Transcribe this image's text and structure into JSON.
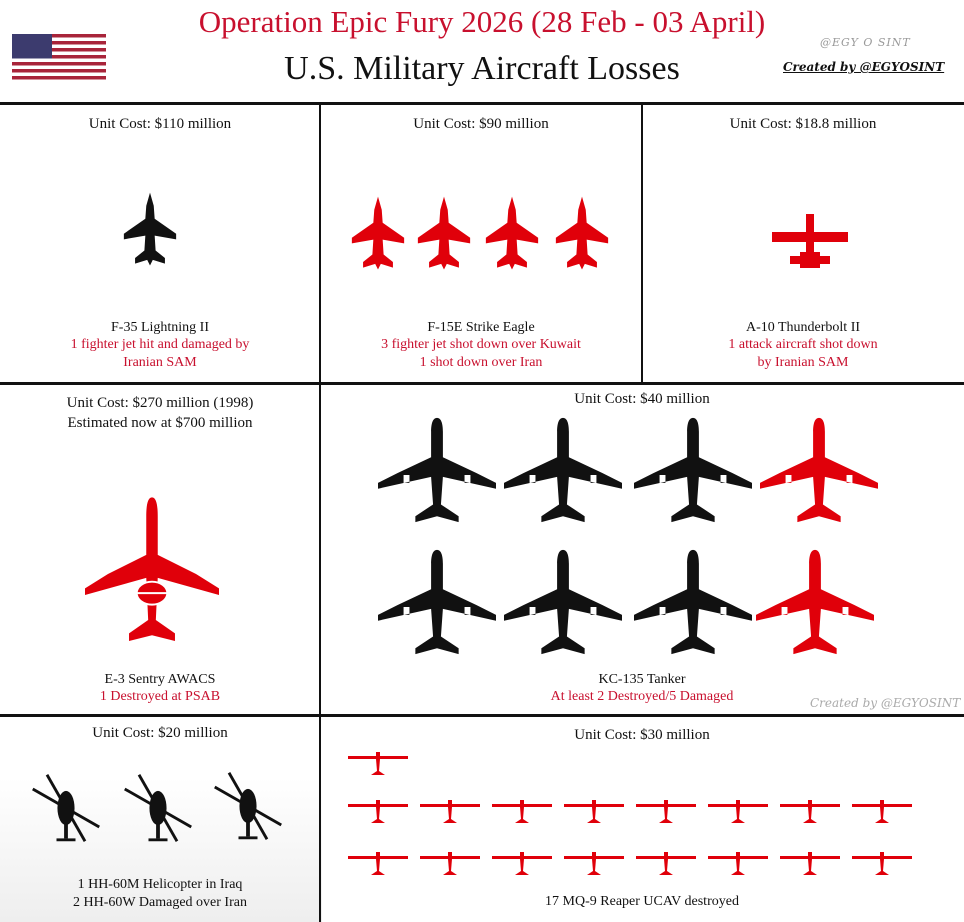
{
  "header": {
    "title": "Operation Epic Fury 2026 (28 Feb - 03 April)",
    "subtitle": "U.S. Military Aircraft Losses",
    "watermark": "@EGY O SINT",
    "credit": "Created by @EGYOSINT",
    "flag": "us-flag-icon"
  },
  "colors": {
    "red": "#e0000a",
    "black": "#111111",
    "title_red": "#c8102e"
  },
  "panels": [
    {
      "cost": "Unit Cost: $110 million",
      "name": "F-35 Lightning II",
      "desc": [
        "1 fighter jet hit and damaged by",
        "Iranian SAM"
      ],
      "icons": {
        "black": 1,
        "red": 0
      }
    },
    {
      "cost": "Unit Cost: $90 million",
      "name": "F-15E Strike Eagle",
      "desc": [
        "3 fighter jet shot down over Kuwait",
        "1 shot down over Iran"
      ],
      "icons": {
        "black": 0,
        "red": 4
      }
    },
    {
      "cost": "Unit Cost: $18.8 million",
      "name": "A-10 Thunderbolt II",
      "desc": [
        "1 attack aircraft shot down",
        "by Iranian SAM"
      ],
      "icons": {
        "black": 0,
        "red": 1
      }
    },
    {
      "cost": "Unit Cost: $270 million (1998)",
      "cost2": "Estimated now at $700 million",
      "name": "E-3 Sentry AWACS",
      "desc": [
        "1 Destroyed at PSAB"
      ],
      "icons": {
        "black": 0,
        "red": 1
      }
    },
    {
      "cost": "Unit Cost: $40 million",
      "name": "KC-135 Tanker",
      "desc": [
        "At least 2 Destroyed/5 Damaged"
      ],
      "icons": {
        "black": 6,
        "red": 2
      },
      "watermark": "Created by @EGYOSINT"
    },
    {
      "cost": "Unit Cost: $20 million",
      "name": "",
      "desc": [
        "1 HH-60M Helicopter in Iraq",
        "2 HH-60W Damaged over Iran"
      ],
      "icons": {
        "black": 3,
        "red": 0
      }
    },
    {
      "cost": "Unit Cost: $30 million",
      "name": "",
      "desc": [
        "17 MQ-9 Reaper UCAV destroyed"
      ],
      "icons": {
        "black": 0,
        "red": 17
      }
    }
  ]
}
